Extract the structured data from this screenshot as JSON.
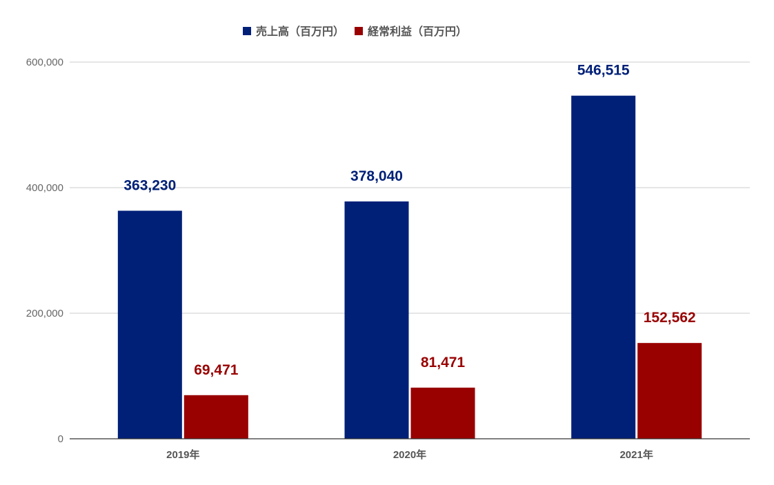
{
  "chart_data": {
    "type": "bar",
    "categories": [
      "2019年",
      "2020年",
      "2021年"
    ],
    "series": [
      {
        "name": "売上高（百万円）",
        "values": [
          363230,
          378040,
          546515
        ],
        "color": "#002078",
        "labels": [
          "363,230",
          "378,040",
          "546,515"
        ]
      },
      {
        "name": "経常利益（百万円）",
        "values": [
          69471,
          81471,
          152562
        ],
        "color": "#990000",
        "labels": [
          "69,471",
          "81,471",
          "152,562"
        ]
      }
    ],
    "yticks": [
      0,
      200000,
      400000,
      600000
    ],
    "ytick_labels": [
      "0",
      "200,000",
      "400,000",
      "600,000"
    ],
    "ylim": [
      0,
      600000
    ],
    "grid": true,
    "legend_position": "top-center",
    "colors": {
      "grid": "#cccccc",
      "axis": "#333333"
    }
  }
}
